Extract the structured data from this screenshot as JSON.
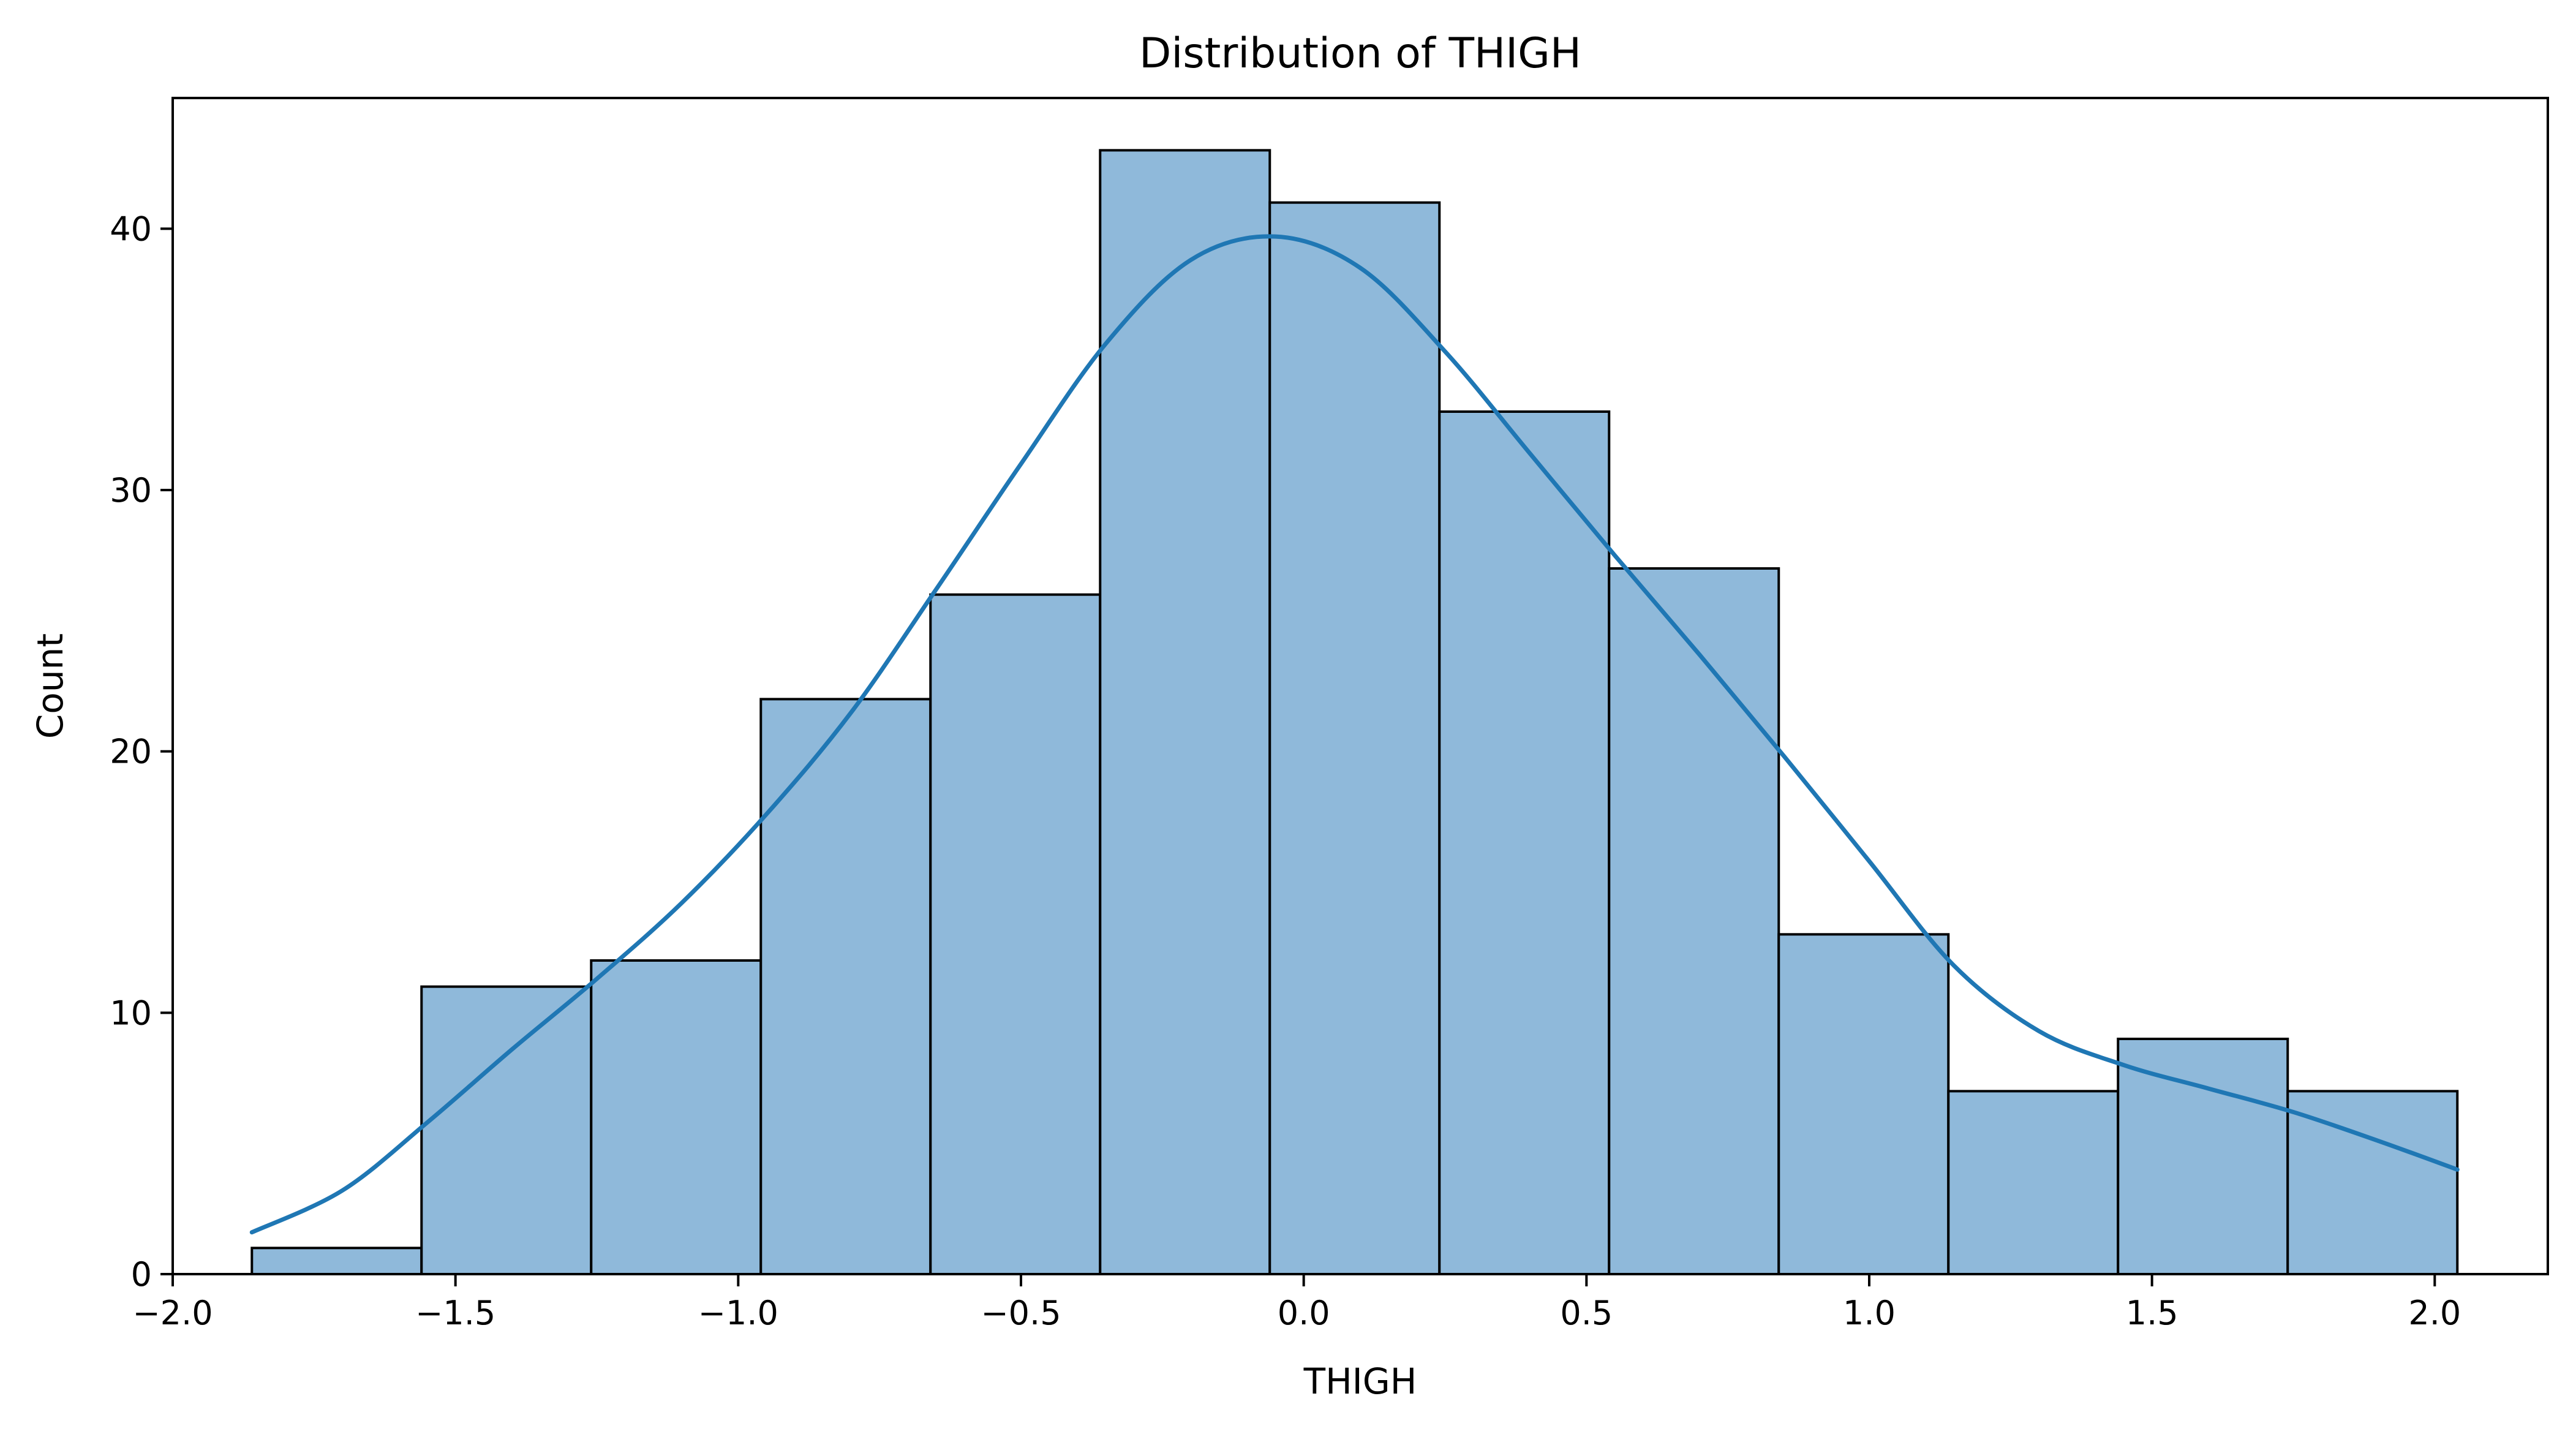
{
  "chart_data": {
    "type": "bar",
    "subtype": "histogram",
    "title": "Distribution of THIGH",
    "xlabel": "THIGH",
    "ylabel": "Count",
    "xlim": [
      -2.0,
      2.2
    ],
    "ylim": [
      0,
      45
    ],
    "x_ticks": [
      -2.0,
      -1.5,
      -1.0,
      -0.5,
      0.0,
      0.5,
      1.0,
      1.5,
      2.0
    ],
    "x_tick_labels": [
      "−2.0",
      "−1.5",
      "−1.0",
      "−0.5",
      "0.0",
      "0.5",
      "1.0",
      "1.5",
      "2.0"
    ],
    "y_ticks": [
      0,
      10,
      20,
      30,
      40
    ],
    "y_tick_labels": [
      "0",
      "10",
      "20",
      "30",
      "40"
    ],
    "bins": [
      {
        "x0": -1.86,
        "x1": -1.56,
        "count": 1
      },
      {
        "x0": -1.56,
        "x1": -1.26,
        "count": 11
      },
      {
        "x0": -1.26,
        "x1": -0.96,
        "count": 12
      },
      {
        "x0": -0.96,
        "x1": -0.66,
        "count": 22
      },
      {
        "x0": -0.66,
        "x1": -0.36,
        "count": 26
      },
      {
        "x0": -0.36,
        "x1": -0.06,
        "count": 43
      },
      {
        "x0": -0.06,
        "x1": 0.24,
        "count": 41
      },
      {
        "x0": 0.24,
        "x1": 0.54,
        "count": 33
      },
      {
        "x0": 0.54,
        "x1": 0.84,
        "count": 27
      },
      {
        "x0": 0.84,
        "x1": 1.14,
        "count": 13
      },
      {
        "x0": 1.14,
        "x1": 1.44,
        "count": 7
      },
      {
        "x0": 1.44,
        "x1": 1.74,
        "count": 9
      },
      {
        "x0": 1.74,
        "x1": 2.04,
        "count": 7
      }
    ],
    "kde": {
      "x": [
        -1.86,
        -1.7,
        -1.55,
        -1.4,
        -1.25,
        -1.1,
        -0.95,
        -0.8,
        -0.65,
        -0.5,
        -0.35,
        -0.2,
        -0.05,
        0.1,
        0.25,
        0.4,
        0.55,
        0.7,
        0.85,
        1.0,
        1.15,
        1.3,
        1.45,
        1.6,
        1.75,
        1.9,
        2.04
      ],
      "y": [
        1.6,
        3.2,
        5.8,
        8.6,
        11.3,
        14.2,
        17.6,
        21.5,
        26.2,
        31.0,
        35.6,
        38.8,
        39.7,
        38.5,
        35.3,
        31.4,
        27.5,
        23.7,
        19.8,
        15.8,
        11.8,
        9.3,
        8.0,
        7.1,
        6.2,
        5.1,
        4.0
      ]
    },
    "colors": {
      "bar_fill": "#8fb9da",
      "bar_edge": "#000000",
      "kde_line": "#1f77b4"
    },
    "grid": false,
    "legend": "none"
  }
}
